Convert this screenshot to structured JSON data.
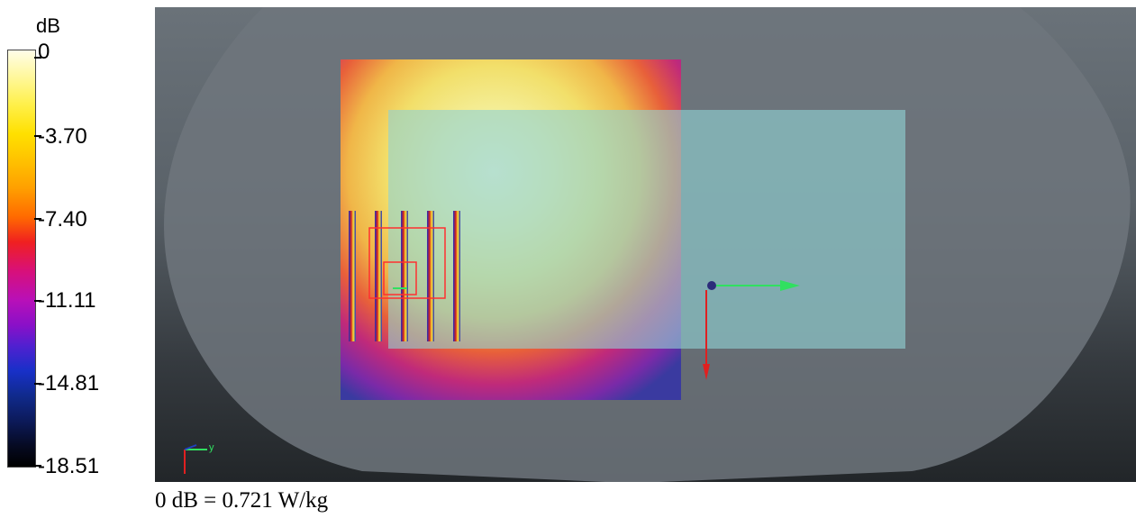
{
  "legend": {
    "unit": "dB",
    "labels": [
      "0",
      "-3.70",
      "-7.40",
      "-11.11",
      "-14.81",
      "-18.51"
    ]
  },
  "caption": "0 dB = 0.721 W/kg",
  "axes_triad": {
    "y_label": "y"
  },
  "colors": {
    "phantom": "#6e767c",
    "dipole_overlay": "#8fd2d4",
    "antenna_outline": "#ff3030",
    "axis_x": "#30e060",
    "axis_y": "#e02020",
    "origin_dot": "#2c2c7a"
  }
}
